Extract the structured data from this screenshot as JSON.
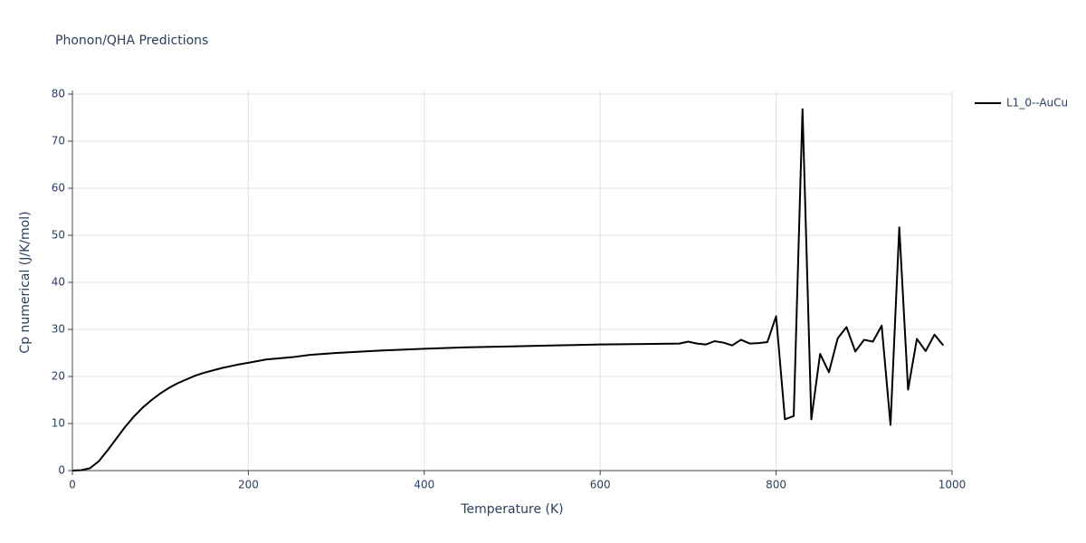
{
  "chart_data": {
    "type": "line",
    "title": "Phonon/QHA Predictions",
    "x_label": "Temperature (K)",
    "y_label": "Cp numerical (J/K/mol)",
    "x": [
      0,
      10,
      20,
      30,
      40,
      50,
      60,
      70,
      80,
      90,
      100,
      110,
      120,
      130,
      140,
      150,
      160,
      170,
      180,
      190,
      200,
      220,
      250,
      270,
      300,
      350,
      400,
      450,
      500,
      550,
      600,
      650,
      690,
      700,
      710,
      720,
      730,
      740,
      750,
      760,
      770,
      780,
      790,
      800,
      810,
      820,
      830,
      840,
      850,
      860,
      870,
      880,
      890,
      900,
      910,
      920,
      930,
      940,
      950,
      960,
      970,
      980,
      990
    ],
    "series": [
      {
        "name": "L1_0--AuCu",
        "color": "#000000",
        "values": [
          0,
          0.1,
          0.5,
          2,
          4.3,
          6.8,
          9.3,
          11.5,
          13.4,
          15,
          16.4,
          17.6,
          18.6,
          19.4,
          20.2,
          20.8,
          21.3,
          21.8,
          22.2,
          22.6,
          22.9,
          23.6,
          24.1,
          24.6,
          25,
          25.5,
          25.9,
          26.2,
          26.4,
          26.6,
          26.8,
          26.9,
          27.0,
          27.4,
          27.0,
          26.8,
          27.5,
          27.2,
          26.6,
          27.8,
          27.0,
          27.1,
          27.3,
          32.8,
          10.9,
          11.6,
          76.8,
          10.9,
          24.8,
          20.9,
          28.1,
          30.5,
          25.3,
          27.8,
          27.4,
          30.8,
          9.7,
          51.7,
          17.2,
          28.0,
          25.4,
          28.9,
          26.6
        ]
      }
    ],
    "xlim": [
      0,
      1000
    ],
    "xticks": [
      0,
      200,
      400,
      600,
      800,
      1000
    ],
    "ylim": [
      0,
      80
    ],
    "yticks": [
      0,
      10,
      20,
      30,
      40,
      50,
      60,
      70,
      80
    ],
    "grid": true
  }
}
